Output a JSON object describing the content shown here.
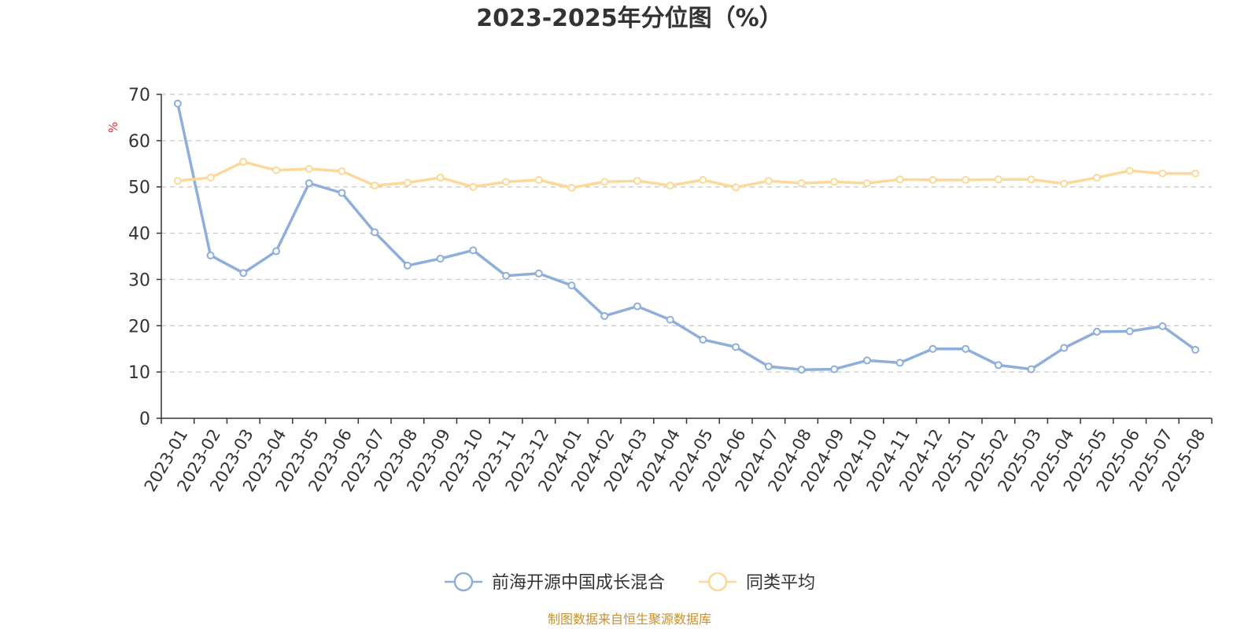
{
  "chart_data": {
    "type": "line",
    "title": "2023-2025年分位图（%）",
    "ylabel": "%",
    "xlabel": "",
    "ylim": [
      0,
      70
    ],
    "yticks": [
      0,
      10,
      20,
      30,
      40,
      50,
      60,
      70
    ],
    "grid": "horizontal-dashed",
    "legend_position": "bottom",
    "categories": [
      "2023-01",
      "2023-02",
      "2023-03",
      "2023-04",
      "2023-05",
      "2023-06",
      "2023-07",
      "2023-08",
      "2023-09",
      "2023-10",
      "2023-11",
      "2023-12",
      "2024-01",
      "2024-02",
      "2024-03",
      "2024-04",
      "2024-05",
      "2024-06",
      "2024-07",
      "2024-08",
      "2024-09",
      "2024-10",
      "2024-11",
      "2024-12",
      "2025-01",
      "2025-02",
      "2025-03",
      "2025-04",
      "2025-05",
      "2025-06",
      "2025-07",
      "2025-08"
    ],
    "series": [
      {
        "name": "前海开源中国成长混合",
        "color": "#8eaedb",
        "values": [
          68.0,
          35.2,
          31.4,
          36.1,
          50.8,
          48.7,
          40.2,
          33.0,
          34.5,
          36.3,
          30.8,
          31.3,
          28.7,
          22.1,
          24.2,
          21.3,
          17.0,
          15.4,
          11.2,
          10.5,
          10.6,
          12.5,
          12.0,
          15.0,
          15.0,
          11.5,
          10.6,
          15.2,
          18.7,
          18.8,
          19.9,
          14.8
        ]
      },
      {
        "name": "同类平均",
        "color": "#fcd899",
        "values": [
          51.3,
          52.0,
          55.4,
          53.6,
          53.9,
          53.4,
          50.3,
          50.9,
          52.0,
          50.0,
          51.1,
          51.5,
          49.8,
          51.1,
          51.3,
          50.3,
          51.5,
          49.9,
          51.3,
          50.8,
          51.1,
          50.8,
          51.6,
          51.5,
          51.5,
          51.6,
          51.6,
          50.7,
          52.0,
          53.5,
          52.9,
          52.9
        ]
      }
    ]
  },
  "colors": {
    "axis": "#333333",
    "grid": "#c8c8c8",
    "unit": "#e8312f",
    "source": "#c88f2a"
  },
  "source_note": "制图数据来自恒生聚源数据库"
}
